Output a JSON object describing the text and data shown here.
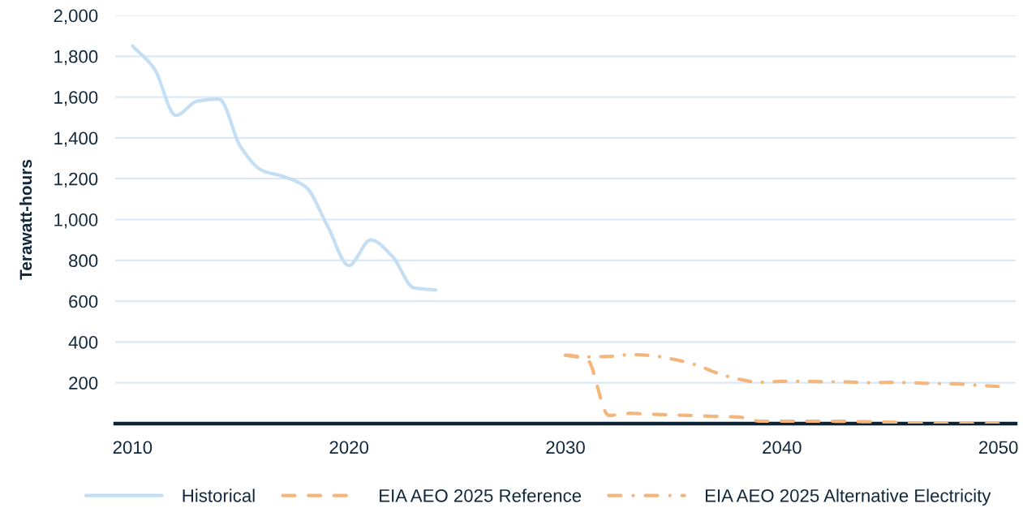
{
  "chart_data": {
    "type": "line",
    "ylabel": "Terawatt-hours",
    "xlim": [
      2009.2,
      2050.8
    ],
    "xticks": [
      2010,
      2020,
      2030,
      2040,
      2050
    ],
    "ylim": [
      0,
      2000
    ],
    "yticks": [
      200,
      400,
      600,
      800,
      {
        "value": 1000,
        "label": "1,000"
      },
      {
        "value": 1200,
        "label": "1,200"
      },
      {
        "value": 1400,
        "label": "1,400"
      },
      {
        "value": 1600,
        "label": "1,600"
      },
      {
        "value": 1800,
        "label": "1,800"
      },
      {
        "value": 2000,
        "label": "2,000"
      }
    ],
    "grid": "y",
    "legend": "bottom",
    "series": [
      {
        "name": "Historical",
        "color": "#c4def3",
        "line_style": "solid",
        "x": [
          2010,
          2011,
          2012,
          2013,
          2014,
          2015,
          2016,
          2017,
          2018,
          2019,
          2020,
          2021,
          2022,
          2023,
          2024
        ],
        "values": [
          1850,
          1740,
          1510,
          1580,
          1590,
          1355,
          1240,
          1210,
          1160,
          970,
          775,
          900,
          820,
          665,
          655
        ]
      },
      {
        "name": "EIA AEO 2025 Reference",
        "color": "#f3b67c",
        "line_style": "dashed",
        "x": [
          2030,
          2031,
          2032,
          2033,
          2034,
          2035,
          2036,
          2037,
          2038,
          2039,
          2040,
          2041,
          2042,
          2043,
          2044,
          2045,
          2046,
          2047,
          2048,
          2049,
          2050
        ],
        "values": [
          335,
          315,
          40,
          50,
          46,
          42,
          39,
          35,
          32,
          12,
          12,
          12,
          12,
          11,
          9,
          7,
          2,
          0,
          0,
          0,
          0
        ]
      },
      {
        "name": "EIA AEO 2025 Alternative Electricity",
        "color": "#f3b67c",
        "line_style": "dashdot",
        "x": [
          2030,
          2031,
          2032,
          2033,
          2034,
          2035,
          2036,
          2037,
          2038,
          2039,
          2040,
          2041,
          2042,
          2043,
          2044,
          2045,
          2046,
          2047,
          2048,
          2049,
          2050
        ],
        "values": [
          336,
          327,
          329,
          338,
          333,
          315,
          289,
          248,
          218,
          202,
          207,
          207,
          205,
          204,
          200,
          202,
          200,
          196,
          195,
          188,
          182
        ]
      }
    ]
  }
}
